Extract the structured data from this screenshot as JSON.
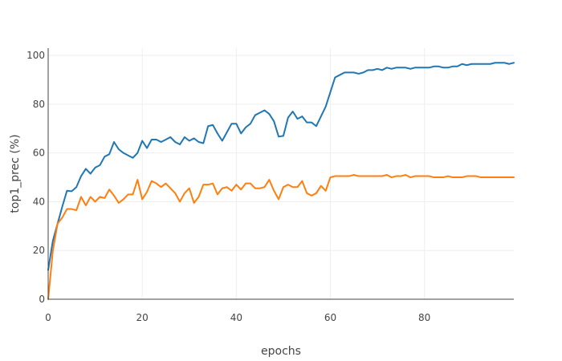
{
  "chart_data": {
    "type": "line",
    "title": "",
    "xlabel": "epochs",
    "ylabel": "top1_prec (%)",
    "xlim": [
      0,
      99
    ],
    "ylim": [
      0,
      103
    ],
    "x_ticks": [
      0,
      20,
      40,
      60,
      80
    ],
    "y_ticks": [
      0,
      20,
      40,
      60,
      80,
      100
    ],
    "grid": true,
    "legend": "none",
    "series": [
      {
        "color": "#1f77b4",
        "x": [
          0,
          1,
          2,
          3,
          4,
          5,
          6,
          7,
          8,
          9,
          10,
          11,
          12,
          13,
          14,
          15,
          16,
          17,
          18,
          19,
          20,
          21,
          22,
          23,
          24,
          25,
          26,
          27,
          28,
          29,
          30,
          31,
          32,
          33,
          34,
          35,
          36,
          37,
          38,
          39,
          40,
          41,
          42,
          43,
          44,
          45,
          46,
          47,
          48,
          49,
          50,
          51,
          52,
          53,
          54,
          55,
          56,
          57,
          58,
          59,
          60,
          61,
          62,
          63,
          64,
          65,
          66,
          67,
          68,
          69,
          70,
          71,
          72,
          73,
          74,
          75,
          76,
          77,
          78,
          79,
          80,
          81,
          82,
          83,
          84,
          85,
          86,
          87,
          88,
          89,
          90,
          91,
          92,
          93,
          94,
          95,
          96,
          97,
          98,
          99
        ],
        "values": [
          12,
          24,
          31,
          38,
          44.5,
          44.3,
          46,
          50.5,
          53.5,
          51.5,
          54,
          55,
          58.5,
          59.5,
          64.5,
          61.5,
          60,
          59,
          58,
          60,
          65,
          62,
          65.5,
          65.5,
          64.5,
          65.5,
          66.5,
          64.5,
          63.5,
          66.5,
          65,
          66,
          64.5,
          64,
          71,
          71.5,
          68,
          65,
          68.5,
          72,
          72,
          68,
          70.5,
          72,
          75.5,
          76.5,
          77.5,
          76,
          73,
          66.7,
          67,
          74.5,
          77,
          74,
          75,
          72.5,
          72.5,
          71,
          75,
          79,
          85,
          91,
          92,
          93,
          93,
          93,
          92.5,
          93,
          94,
          94,
          94.5,
          94,
          95,
          94.5,
          95,
          95,
          95,
          94.5,
          95,
          95,
          95,
          95,
          95.5,
          95.5,
          95,
          95,
          95.5,
          95.5,
          96.5,
          96,
          96.5,
          96.5,
          96.5,
          96.5,
          96.5,
          97,
          97,
          97,
          96.5,
          97
        ]
      },
      {
        "color": "#ff7f0e",
        "x": [
          0,
          1,
          2,
          3,
          4,
          5,
          6,
          7,
          8,
          9,
          10,
          11,
          12,
          13,
          14,
          15,
          16,
          17,
          18,
          19,
          20,
          21,
          22,
          23,
          24,
          25,
          26,
          27,
          28,
          29,
          30,
          31,
          32,
          33,
          34,
          35,
          36,
          37,
          38,
          39,
          40,
          41,
          42,
          43,
          44,
          45,
          46,
          47,
          48,
          49,
          50,
          51,
          52,
          53,
          54,
          55,
          56,
          57,
          58,
          59,
          60,
          61,
          62,
          63,
          64,
          65,
          66,
          67,
          68,
          69,
          70,
          71,
          72,
          73,
          74,
          75,
          76,
          77,
          78,
          79,
          80,
          81,
          82,
          83,
          84,
          85,
          86,
          87,
          88,
          89,
          90,
          91,
          92,
          93,
          94,
          95,
          96,
          97,
          98,
          99
        ],
        "values": [
          0,
          20,
          31,
          33.5,
          37,
          37,
          36.5,
          42,
          38.5,
          42,
          40,
          42,
          41.5,
          45,
          42.5,
          39.5,
          41,
          43,
          43,
          49,
          41,
          44,
          48.5,
          47.5,
          46,
          47.5,
          45.5,
          43.5,
          40,
          43.5,
          45.5,
          39.5,
          42,
          47,
          47,
          47.5,
          43,
          45.5,
          46,
          44.5,
          47,
          45,
          47.5,
          47.5,
          45.5,
          45.5,
          46,
          49,
          44.5,
          41,
          46,
          47,
          46,
          46,
          48.5,
          43.5,
          42.5,
          43.5,
          46.5,
          44.5,
          50,
          50.5,
          50.5,
          50.5,
          50.5,
          51,
          50.5,
          50.5,
          50.5,
          50.5,
          50.5,
          50.5,
          51,
          50,
          50.5,
          50.5,
          51,
          50,
          50.5,
          50.5,
          50.5,
          50.5,
          50,
          50,
          50,
          50.5,
          50,
          50,
          50,
          50.5,
          50.5,
          50.5,
          50,
          50,
          50,
          50,
          50,
          50,
          50,
          50
        ]
      }
    ]
  }
}
